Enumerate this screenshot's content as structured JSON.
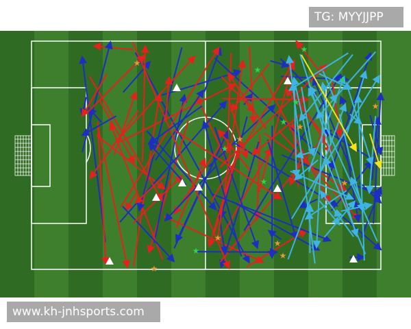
{
  "watermark_top": "TG: MYYJJPP",
  "watermark_bottom": "www.kh-jnhsports.com",
  "colors": {
    "grass_dark": "#2f6b22",
    "grass_light": "#3d7f2c",
    "lines": "#ffffff",
    "pass_red": "#e3231b",
    "pass_blue": "#1c2fbf",
    "pass_cyan": "#3fb4e2",
    "pass_yellow": "#f5e21a",
    "star_orange": "#e59a3a",
    "star_green": "#2fd64a",
    "triangle": "#ffffff"
  },
  "legend_icons": [
    "pass-arrow",
    "star-marker",
    "triangle-marker"
  ]
}
